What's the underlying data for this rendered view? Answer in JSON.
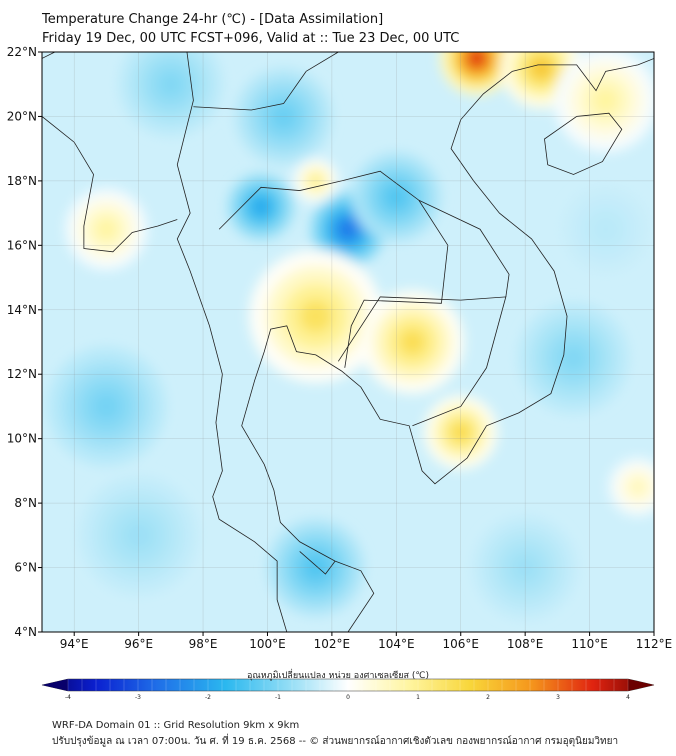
{
  "title": {
    "line1": "Temperature Change 24-hr (℃) - [Data Assimilation]",
    "line2": "Friday 19 Dec, 00 UTC FCST+096, Valid at :: Tue 23 Dec, 00 UTC"
  },
  "map": {
    "lon_range": [
      93,
      112
    ],
    "lat_range": [
      4,
      22
    ],
    "x_ticks": [
      "94°E",
      "96°E",
      "98°E",
      "100°E",
      "102°E",
      "104°E",
      "106°E",
      "108°E",
      "110°E",
      "112°E"
    ],
    "x_tick_values": [
      94,
      96,
      98,
      100,
      102,
      104,
      106,
      108,
      110,
      112
    ],
    "y_ticks": [
      "22°N",
      "20°N",
      "18°N",
      "16°N",
      "14°N",
      "12°N",
      "10°N",
      "8°N",
      "6°N",
      "4°N"
    ],
    "y_tick_values": [
      22,
      20,
      18,
      16,
      14,
      12,
      10,
      8,
      6,
      4
    ],
    "field_blobs": [
      {
        "lon": 106.5,
        "lat": 21.8,
        "value": 3.2,
        "r": 1.0
      },
      {
        "lon": 108.5,
        "lat": 21.5,
        "value": 1.8,
        "r": 1.1
      },
      {
        "lon": 110.5,
        "lat": 20.5,
        "value": 0.8,
        "r": 1.4
      },
      {
        "lon": 102.5,
        "lat": 16.5,
        "value": -2.4,
        "r": 1.0
      },
      {
        "lon": 99.8,
        "lat": 17.2,
        "value": -1.8,
        "r": 0.9
      },
      {
        "lon": 104.0,
        "lat": 17.5,
        "value": -1.3,
        "r": 1.2
      },
      {
        "lon": 101.5,
        "lat": 18.0,
        "value": 1.0,
        "r": 0.6
      },
      {
        "lon": 101.5,
        "lat": 13.8,
        "value": 1.3,
        "r": 1.8
      },
      {
        "lon": 104.5,
        "lat": 13.0,
        "value": 1.4,
        "r": 1.4
      },
      {
        "lon": 106.0,
        "lat": 10.2,
        "value": 1.5,
        "r": 1.0
      },
      {
        "lon": 95.0,
        "lat": 16.5,
        "value": 0.8,
        "r": 1.1
      },
      {
        "lon": 97.0,
        "lat": 21.0,
        "value": -0.9,
        "r": 1.4
      },
      {
        "lon": 100.5,
        "lat": 20.0,
        "value": -1.1,
        "r": 1.3
      },
      {
        "lon": 95.0,
        "lat": 11.0,
        "value": -1.0,
        "r": 1.6
      },
      {
        "lon": 101.5,
        "lat": 6.0,
        "value": -1.3,
        "r": 1.3
      },
      {
        "lon": 109.5,
        "lat": 12.5,
        "value": -0.9,
        "r": 1.5
      },
      {
        "lon": 111.5,
        "lat": 8.5,
        "value": 0.6,
        "r": 0.8
      },
      {
        "lon": 108.0,
        "lat": 6.0,
        "value": -0.7,
        "r": 1.4
      },
      {
        "lon": 96.0,
        "lat": 7.0,
        "value": -0.7,
        "r": 1.6
      },
      {
        "lon": 110.5,
        "lat": 16.5,
        "value": -0.5,
        "r": 1.2
      }
    ],
    "field_base": -0.35
  },
  "colorbar": {
    "title": "อุณหภูมิเปลี่ยนแปลง หน่วย องศาเซลเซียส (℃)",
    "min": -4,
    "max": 4,
    "ticks": [
      "-4",
      "-3",
      "-2",
      "-1",
      "0",
      "1",
      "2",
      "3",
      "4"
    ],
    "tick_values": [
      -4,
      -3,
      -2,
      -1,
      0,
      1,
      2,
      3,
      4
    ],
    "stops": [
      {
        "v": -4,
        "c": "#08006b"
      },
      {
        "v": -3.3,
        "c": "#0a1fd0"
      },
      {
        "v": -2.5,
        "c": "#1f6ee8"
      },
      {
        "v": -1.6,
        "c": "#2bb8ef"
      },
      {
        "v": -0.8,
        "c": "#8fdcf5"
      },
      {
        "v": 0,
        "c": "#ffffff"
      },
      {
        "v": 0.8,
        "c": "#fff5a0"
      },
      {
        "v": 1.6,
        "c": "#f8d63a"
      },
      {
        "v": 2.4,
        "c": "#f5961c"
      },
      {
        "v": 3.2,
        "c": "#e02410"
      },
      {
        "v": 4,
        "c": "#6b0000"
      }
    ]
  },
  "footer": {
    "line1": "WRF-DA Domain 01 :: Grid Resolution 9km x 9km",
    "line2": "ปรับปรุงข้อมูล ณ เวลา 07:00น. วัน ศ. ที่ 19 ธ.ค. 2568 -- © ส่วนพยากรณ์อากาศเชิงตัวเลข กองพยากรณ์อากาศ กรมอุตุนิยมวิทยา"
  }
}
